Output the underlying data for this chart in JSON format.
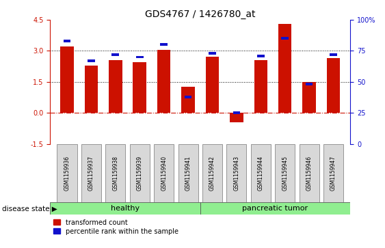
{
  "title": "GDS4767 / 1426780_at",
  "samples": [
    "GSM1159936",
    "GSM1159937",
    "GSM1159938",
    "GSM1159939",
    "GSM1159940",
    "GSM1159941",
    "GSM1159942",
    "GSM1159943",
    "GSM1159944",
    "GSM1159945",
    "GSM1159946",
    "GSM1159947"
  ],
  "transformed_count": [
    3.2,
    2.3,
    2.55,
    2.45,
    3.05,
    1.25,
    2.7,
    -0.45,
    2.55,
    4.3,
    1.5,
    2.65
  ],
  "percentile_rank": [
    83,
    67,
    72,
    70,
    80,
    38,
    73,
    25,
    71,
    85,
    48,
    72
  ],
  "groups": [
    {
      "label": "healthy",
      "start": 0,
      "end": 5,
      "color": "#90ee90"
    },
    {
      "label": "pancreatic tumor",
      "start": 6,
      "end": 11,
      "color": "#90ee90"
    }
  ],
  "ylim_left": [
    -1.5,
    4.5
  ],
  "ylim_right": [
    0,
    100
  ],
  "yticks_left": [
    -1.5,
    0.0,
    1.5,
    3.0,
    4.5
  ],
  "yticks_right": [
    0,
    25,
    50,
    75,
    100
  ],
  "bar_color_red": "#cc1100",
  "bar_color_blue": "#1111cc",
  "dotted_lines": [
    1.5,
    3.0
  ],
  "bar_width": 0.55,
  "fig_width": 5.63,
  "fig_height": 3.63
}
